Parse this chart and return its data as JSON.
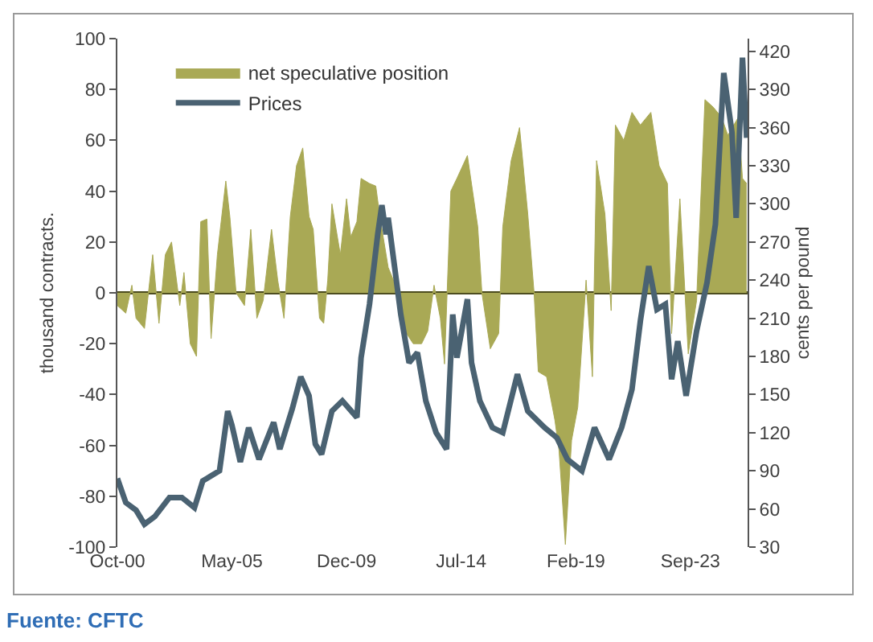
{
  "chart_data": {
    "type": "area",
    "xlabel": null,
    "ylabel": "thousand contracts.",
    "y2label": "cents per pound",
    "xlim": [
      "2000-10-01",
      "2025-12-15"
    ],
    "xticks": [
      {
        "value": "2000-10-01",
        "label": "Oct-00"
      },
      {
        "value": "2005-05-01",
        "label": "May-05"
      },
      {
        "value": "2009-12-01",
        "label": "Dec-09"
      },
      {
        "value": "2014-07-01",
        "label": "Jul-14"
      },
      {
        "value": "2019-02-01",
        "label": "Feb-19"
      },
      {
        "value": "2023-09-01",
        "label": "Sep-23"
      }
    ],
    "ylim": [
      -100,
      100
    ],
    "yticks": [
      -100,
      -80,
      -60,
      -40,
      -20,
      0,
      20,
      40,
      60,
      80,
      100
    ],
    "y2lim": [
      30,
      430
    ],
    "y2ticks": [
      30,
      60,
      90,
      120,
      150,
      180,
      210,
      240,
      270,
      300,
      330,
      360,
      390,
      420
    ],
    "grid": false,
    "legend": "top left",
    "series": [
      {
        "name": "net speculative position",
        "color": "#a9a955",
        "x": [
          "2000-10",
          "2001-02",
          "2001-05",
          "2001-07",
          "2001-11",
          "2002-03",
          "2002-06",
          "2002-09",
          "2002-12",
          "2003-04",
          "2003-06",
          "2003-09",
          "2003-12",
          "2004-02",
          "2004-05",
          "2004-07",
          "2004-10",
          "2005-02",
          "2005-04",
          "2005-07",
          "2005-11",
          "2006-02",
          "2006-05",
          "2006-08",
          "2006-12",
          "2007-03",
          "2007-06",
          "2007-09",
          "2007-12",
          "2008-03",
          "2008-06",
          "2008-08",
          "2008-11",
          "2009-01",
          "2009-03",
          "2009-05",
          "2009-09",
          "2009-12",
          "2010-02",
          "2010-05",
          "2010-07",
          "2010-11",
          "2011-02",
          "2011-04",
          "2011-08",
          "2011-12",
          "2012-04",
          "2012-08",
          "2012-12",
          "2013-03",
          "2013-06",
          "2013-09",
          "2013-11",
          "2014-02",
          "2014-05",
          "2014-10",
          "2015-03",
          "2015-05",
          "2015-09",
          "2016-01",
          "2016-03",
          "2016-07",
          "2016-11",
          "2017-03",
          "2017-06",
          "2017-08",
          "2017-12",
          "2018-04",
          "2018-06",
          "2018-09",
          "2018-12",
          "2019-03",
          "2019-07",
          "2019-10",
          "2019-12",
          "2020-04",
          "2020-07",
          "2020-09",
          "2021-01",
          "2021-05",
          "2021-09",
          "2022-02",
          "2022-06",
          "2022-10",
          "2022-12",
          "2023-04",
          "2023-08",
          "2023-12",
          "2024-04",
          "2024-08",
          "2024-12",
          "2025-03",
          "2025-08",
          "2025-10",
          "2025-12"
        ],
        "values": [
          -5,
          -8,
          3,
          -10,
          -14,
          15,
          -12,
          15,
          20,
          -5,
          8,
          -20,
          -25,
          28,
          29,
          -18,
          15,
          44,
          30,
          0,
          -5,
          25,
          -10,
          -3,
          25,
          5,
          -10,
          30,
          50,
          57,
          30,
          25,
          -10,
          -12,
          5,
          35,
          15,
          37,
          22,
          28,
          45,
          43,
          42,
          30,
          10,
          2,
          -15,
          -20,
          -20,
          -15,
          3,
          -10,
          -28,
          40,
          45,
          54,
          26,
          0,
          -22,
          -16,
          26,
          52,
          65,
          31,
          0,
          -31,
          -33,
          -50,
          -62,
          -99,
          -58,
          -45,
          5,
          -33,
          52,
          31,
          -7,
          66,
          60,
          71,
          66,
          71,
          50,
          43,
          -16,
          37,
          -24,
          -3,
          76,
          73,
          69,
          62,
          69,
          45,
          43
        ]
      },
      {
        "name": "Prices",
        "type": "line",
        "axis": "y2",
        "color": "#4a6272",
        "x": [
          "2000-10",
          "2001-02",
          "2001-07",
          "2001-11",
          "2002-04",
          "2002-11",
          "2003-05",
          "2003-11",
          "2004-03",
          "2004-07",
          "2004-11",
          "2005-03",
          "2005-05",
          "2005-09",
          "2006-01",
          "2006-06",
          "2007-01",
          "2007-04",
          "2007-10",
          "2008-02",
          "2008-06",
          "2008-09",
          "2008-12",
          "2009-05",
          "2009-10",
          "2010-05",
          "2010-07",
          "2010-11",
          "2011-03",
          "2011-05",
          "2011-07",
          "2011-08",
          "2011-11",
          "2012-02",
          "2012-06",
          "2012-10",
          "2013-02",
          "2013-07",
          "2013-12",
          "2014-03",
          "2014-05",
          "2014-10",
          "2014-12",
          "2015-04",
          "2015-10",
          "2016-03",
          "2016-10",
          "2017-03",
          "2017-11",
          "2018-05",
          "2018-10",
          "2019-05",
          "2019-11",
          "2020-06",
          "2020-12",
          "2021-05",
          "2021-09",
          "2022-01",
          "2022-05",
          "2022-09",
          "2022-12",
          "2023-03",
          "2023-07",
          "2023-12",
          "2024-05",
          "2024-09",
          "2025-01",
          "2025-05",
          "2025-07",
          "2025-10",
          "2025-12"
        ],
        "values": [
          84,
          65,
          59,
          48,
          54,
          69,
          69,
          61,
          82,
          86,
          90,
          137,
          126,
          97,
          124,
          99,
          128,
          107,
          139,
          164,
          149,
          111,
          103,
          137,
          145,
          132,
          179,
          221,
          276,
          299,
          276,
          289,
          251,
          213,
          175,
          183,
          145,
          120,
          107,
          213,
          179,
          225,
          175,
          145,
          124,
          120,
          166,
          137,
          124,
          116,
          99,
          90,
          124,
          99,
          124,
          154,
          208,
          251,
          217,
          221,
          162,
          192,
          149,
          200,
          238,
          284,
          403,
          356,
          289,
          415,
          352
        ]
      }
    ],
    "annotations": [
      "Fuente: CFTC"
    ]
  }
}
